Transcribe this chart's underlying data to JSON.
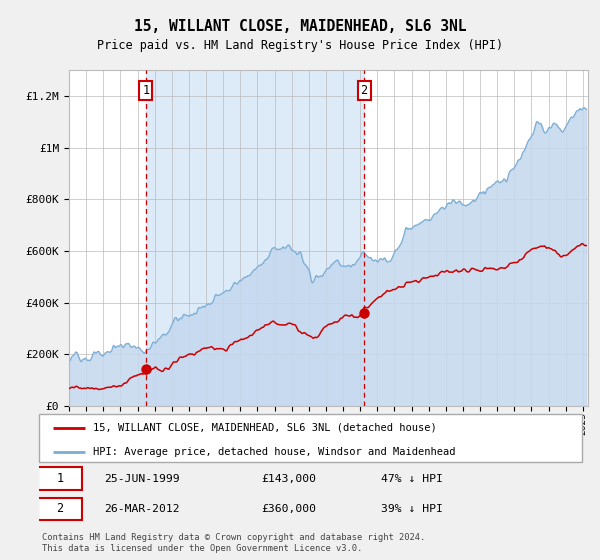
{
  "title": "15, WILLANT CLOSE, MAIDENHEAD, SL6 3NL",
  "subtitle": "Price paid vs. HM Land Registry's House Price Index (HPI)",
  "shaded_region": [
    1999.48,
    2012.23
  ],
  "event1": {
    "date_num": 1999.48,
    "value": 143000,
    "label": "1"
  },
  "event2": {
    "date_num": 2012.23,
    "value": 360000,
    "label": "2"
  },
  "legend_line1": "15, WILLANT CLOSE, MAIDENHEAD, SL6 3NL (detached house)",
  "legend_line2": "HPI: Average price, detached house, Windsor and Maidenhead",
  "footer": "Contains HM Land Registry data © Crown copyright and database right 2024.\nThis data is licensed under the Open Government Licence v3.0.",
  "ylim": [
    0,
    1300000
  ],
  "yticks": [
    0,
    200000,
    400000,
    600000,
    800000,
    1000000,
    1200000
  ],
  "ytick_labels": [
    "£0",
    "£200K",
    "£400K",
    "£600K",
    "£800K",
    "£1M",
    "£1.2M"
  ],
  "red_color": "#cc0000",
  "blue_color": "#7aadd4",
  "blue_fill": "#c5d8ee",
  "grid_color": "#bbbbbb",
  "fig_bg": "#f0f0f0",
  "plot_bg": "#ffffff",
  "shade_color": "#ddeaf8"
}
